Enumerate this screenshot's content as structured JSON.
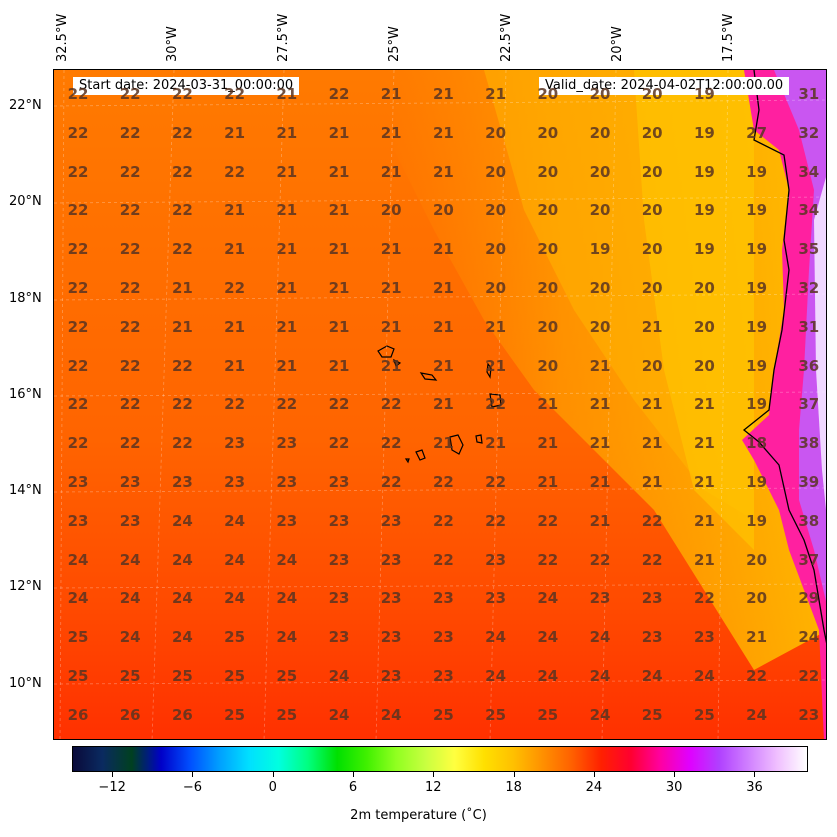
{
  "header": {
    "start_date": "Start date: 2024-03-31_00:00:00",
    "valid_date": "Valid_date: 2024-04-02T12:00:00.00"
  },
  "lon_labels": [
    "32.5°W",
    "30°W",
    "27.5°W",
    "25°W",
    "22.5°W",
    "20°W",
    "17.5°W"
  ],
  "lat_labels": [
    "22°N",
    "20°N",
    "18°N",
    "16°N",
    "14°N",
    "12°N",
    "10°N"
  ],
  "grid_values": [
    [
      "22",
      "22",
      "22",
      "22",
      "21",
      "22",
      "21",
      "21",
      "21",
      "20",
      "20",
      "20",
      "19",
      "31"
    ],
    [
      "22",
      "22",
      "22",
      "21",
      "21",
      "21",
      "21",
      "21",
      "20",
      "20",
      "20",
      "20",
      "19",
      "27",
      "32"
    ],
    [
      "22",
      "22",
      "22",
      "22",
      "21",
      "21",
      "21",
      "21",
      "20",
      "20",
      "20",
      "20",
      "19",
      "19",
      "34"
    ],
    [
      "22",
      "22",
      "22",
      "21",
      "21",
      "21",
      "20",
      "20",
      "20",
      "20",
      "20",
      "20",
      "19",
      "19",
      "34"
    ],
    [
      "22",
      "22",
      "22",
      "21",
      "21",
      "21",
      "21",
      "21",
      "20",
      "20",
      "19",
      "20",
      "19",
      "19",
      "35"
    ],
    [
      "22",
      "22",
      "21",
      "22",
      "21",
      "21",
      "21",
      "21",
      "20",
      "20",
      "20",
      "20",
      "20",
      "19",
      "32"
    ],
    [
      "22",
      "22",
      "21",
      "21",
      "21",
      "21",
      "21",
      "21",
      "21",
      "20",
      "20",
      "21",
      "20",
      "19",
      "31"
    ],
    [
      "22",
      "22",
      "22",
      "21",
      "21",
      "21",
      "21",
      "21",
      "21",
      "20",
      "21",
      "20",
      "20",
      "19",
      "36"
    ],
    [
      "22",
      "22",
      "22",
      "22",
      "22",
      "22",
      "22",
      "21",
      "22",
      "21",
      "21",
      "21",
      "21",
      "19",
      "37"
    ],
    [
      "22",
      "22",
      "22",
      "23",
      "23",
      "22",
      "22",
      "21",
      "21",
      "21",
      "21",
      "21",
      "21",
      "18",
      "38"
    ],
    [
      "23",
      "23",
      "23",
      "23",
      "23",
      "23",
      "22",
      "22",
      "22",
      "21",
      "21",
      "21",
      "21",
      "19",
      "39"
    ],
    [
      "23",
      "23",
      "24",
      "24",
      "23",
      "23",
      "23",
      "22",
      "22",
      "22",
      "21",
      "22",
      "21",
      "19",
      "38"
    ],
    [
      "24",
      "24",
      "24",
      "24",
      "24",
      "23",
      "23",
      "22",
      "23",
      "22",
      "22",
      "22",
      "21",
      "20",
      "37"
    ],
    [
      "24",
      "24",
      "24",
      "24",
      "24",
      "23",
      "23",
      "23",
      "23",
      "24",
      "23",
      "23",
      "22",
      "20",
      "29"
    ],
    [
      "25",
      "24",
      "24",
      "25",
      "24",
      "23",
      "23",
      "23",
      "24",
      "24",
      "24",
      "23",
      "23",
      "21",
      "24"
    ],
    [
      "25",
      "25",
      "25",
      "25",
      "25",
      "24",
      "23",
      "23",
      "24",
      "24",
      "24",
      "24",
      "24",
      "22",
      "22"
    ],
    [
      "26",
      "26",
      "26",
      "25",
      "25",
      "24",
      "24",
      "25",
      "25",
      "25",
      "24",
      "25",
      "25",
      "24",
      "23"
    ]
  ],
  "colorbar": {
    "title": "2m temperature ($^\\circ$C)",
    "title_display": "2m temperature (˚C)",
    "tick_labels": [
      "−12",
      "−6",
      "0",
      "6",
      "12",
      "18",
      "24",
      "30",
      "36"
    ],
    "tick_values": [
      -12,
      -6,
      0,
      6,
      12,
      18,
      24,
      30,
      36
    ],
    "range": [
      -15,
      40
    ],
    "colors": [
      "#0a0a3a",
      "#0a2a60",
      "#004020",
      "#0000c8",
      "#0050ff",
      "#00a0ff",
      "#00e0ff",
      "#00ffe0",
      "#00ff80",
      "#00e000",
      "#40f000",
      "#90ff20",
      "#c8ff40",
      "#ffff40",
      "#ffe000",
      "#ffc000",
      "#ff9000",
      "#ff6000",
      "#ff2000",
      "#ff0030",
      "#ff00a0",
      "#e000ff",
      "#b040ff",
      "#d080ff",
      "#f0c0ff",
      "#ffffff"
    ]
  }
}
